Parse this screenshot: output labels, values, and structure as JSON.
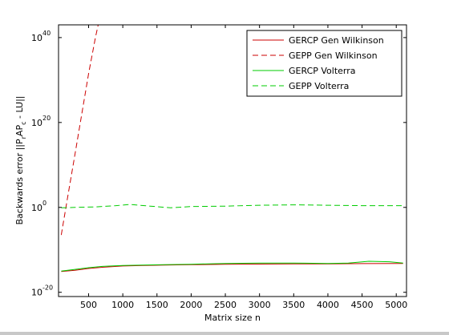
{
  "chart_data": {
    "type": "line",
    "title": "",
    "xlabel": "Matrix size n",
    "ylabel_parts": {
      "main": "Backwards error  ||P",
      "sub1": "r",
      "mid": "AP",
      "sub2": "c",
      "tail": " - LU||"
    },
    "xscale": "linear",
    "yscale": "log",
    "xlim": [
      60,
      5150
    ],
    "ylim_exponents": [
      -21,
      43
    ],
    "x_ticks": [
      500,
      1000,
      1500,
      2000,
      2500,
      3000,
      3500,
      4000,
      4500,
      5000
    ],
    "x_tick_labels": [
      "500",
      "1000",
      "1500",
      "2000",
      "2500",
      "3000",
      "3500",
      "4000",
      "4500",
      "5000"
    ],
    "y_ticks": [
      {
        "base": "10",
        "exponent": "-20",
        "value_exp": -20
      },
      {
        "base": "10",
        "exponent": "0",
        "value_exp": 0
      },
      {
        "base": "10",
        "exponent": "20",
        "value_exp": 20
      },
      {
        "base": "10",
        "exponent": "40",
        "value_exp": 40
      }
    ],
    "grid": false,
    "legend_position": "top-right",
    "series": [
      {
        "name": "GERCP Gen Wilkinson",
        "color": "#cc0000",
        "dash": "solid",
        "x": [
          100,
          300,
          500,
          700,
          1000,
          1300,
          1600,
          2000,
          2500,
          3000,
          3500,
          4000,
          4500,
          5100
        ],
        "y_exp": [
          -15.1,
          -14.8,
          -14.4,
          -14.1,
          -13.8,
          -13.7,
          -13.6,
          -13.5,
          -13.4,
          -13.35,
          -13.3,
          -13.3,
          -13.25,
          -13.2
        ]
      },
      {
        "name": "GEPP Gen Wilkinson",
        "color": "#cc0000",
        "dash": "dashed",
        "x": [
          100,
          200,
          300,
          400,
          500,
          600,
          680
        ],
        "y_exp": [
          -6.5,
          3.0,
          12.5,
          22.0,
          31.5,
          40.0,
          46.0
        ]
      },
      {
        "name": "GERCP Volterra",
        "color": "#00cc00",
        "dash": "solid",
        "x": [
          100,
          300,
          500,
          700,
          1000,
          1300,
          1600,
          2000,
          2500,
          3000,
          3500,
          4000,
          4300,
          4600,
          4900,
          5100
        ],
        "y_exp": [
          -15.0,
          -14.6,
          -14.2,
          -13.9,
          -13.7,
          -13.6,
          -13.5,
          -13.4,
          -13.2,
          -13.1,
          -13.1,
          -13.2,
          -13.1,
          -12.7,
          -12.8,
          -13.1
        ]
      },
      {
        "name": "GEPP Volterra",
        "color": "#00cc00",
        "dash": "dashed",
        "x": [
          100,
          300,
          600,
          900,
          1100,
          1400,
          1700,
          2000,
          2500,
          3000,
          3500,
          4000,
          4500,
          5100
        ],
        "y_exp": [
          -0.1,
          0.0,
          0.1,
          0.4,
          0.7,
          0.3,
          -0.1,
          0.2,
          0.3,
          0.5,
          0.6,
          0.5,
          0.4,
          0.4
        ]
      }
    ]
  }
}
